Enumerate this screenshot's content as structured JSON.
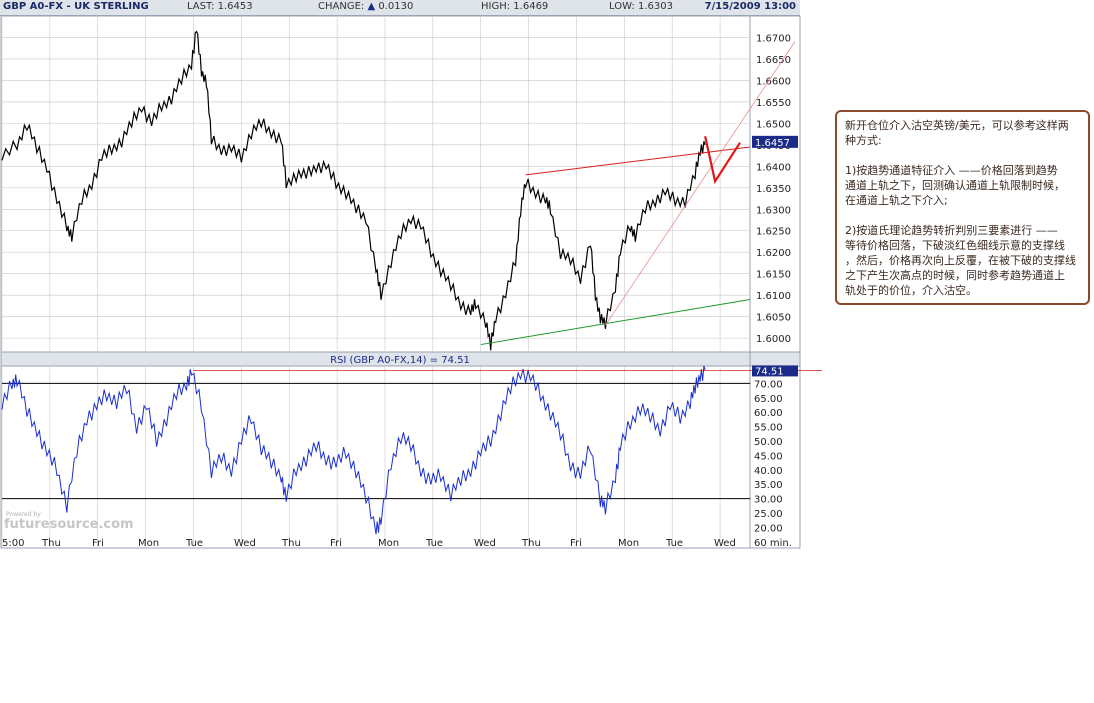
{
  "header": {
    "symbol": "GBP A0-FX - UK STERLING",
    "last_label": "LAST:",
    "last_value": "1.6453",
    "change_label": "CHANGE:",
    "change_arrow": "▲",
    "change_value": "0.0130",
    "high_label": "HIGH:",
    "high_value": "1.6469",
    "low_label": "LOW:",
    "low_value": "1.6303",
    "datetime": "7/15/2009 13:00"
  },
  "indicator": {
    "label": "RSI (GBP A0-FX,14) = 74.51",
    "value_badge": "74.51"
  },
  "price_badge": "1.6457",
  "watermark": "futuresource.com",
  "watermark_small": "Powered by",
  "note": {
    "lines": [
      "新开仓位介入沽空英镑/美元，可以参考这样两",
      "种方式:",
      "",
      "1)按趋势通道特征介入 ——价格回落到趋势",
      "通道上轨之下，回测确认通道上轨限制时候，",
      "在通道上轨之下介入;",
      "",
      "2)按道氏理论趋势转折判别三要素进行 ——",
      "等待价格回落，下破淡红色细线示意的支撑线",
      "，然后，价格再次向上反覆，在被下破的支撑线",
      "之下产生次高点的时候，同时参考趋势通道上",
      "轨处于的价位，介入沽空。"
    ]
  },
  "colors": {
    "price_line": "#000000",
    "rsi_line": "#1a2fd0",
    "channel_upper": "#d42020",
    "channel_lower": "#1e9a2a",
    "support_line": "#f08a8a",
    "annotation_arrow": "#e01818",
    "badge_bg": "#1b2b8a",
    "grid": "#c8c8c8",
    "note_border": "#8b4a2b"
  },
  "chart_data": [
    {
      "type": "line",
      "title": "GBP A0-FX - UK STERLING",
      "interval": "60 min.",
      "ylim": [
        1.597,
        1.675
      ],
      "y_ticks": [
        "1.6700",
        "1.6650",
        "1.6600",
        "1.6550",
        "1.6500",
        "1.6450",
        "1.6400",
        "1.6350",
        "1.6300",
        "1.6250",
        "1.6200",
        "1.6150",
        "1.6100",
        "1.6050",
        "1.6000"
      ],
      "x_tick_labels": [
        "5:00",
        "Thu",
        "Fri",
        "Mon",
        "Tue",
        "Wed",
        "Thu",
        "Fri",
        "Mon",
        "Tue",
        "Wed",
        "Thu",
        "Fri",
        "Mon",
        "Tue",
        "Wed",
        "60 min."
      ],
      "x_range": [
        0,
        150
      ],
      "series": [
        {
          "values": [
            [
              0,
              1.642
            ],
            [
              3,
              1.645
            ],
            [
              5,
              1.65
            ],
            [
              7,
              1.644
            ],
            [
              9,
              1.64
            ],
            [
              11,
              1.632
            ],
            [
              13,
              1.626
            ],
            [
              14,
              1.624
            ],
            [
              16,
              1.632
            ],
            [
              18,
              1.636
            ],
            [
              20,
              1.642
            ],
            [
              22,
              1.644
            ],
            [
              24,
              1.646
            ],
            [
              26,
              1.65
            ],
            [
              28,
              1.654
            ],
            [
              30,
              1.65
            ],
            [
              32,
              1.654
            ],
            [
              34,
              1.656
            ],
            [
              36,
              1.66
            ],
            [
              38,
              1.664
            ],
            [
              39,
              1.672
            ],
            [
              40,
              1.662
            ],
            [
              41,
              1.66
            ],
            [
              42,
              1.646
            ],
            [
              44,
              1.644
            ],
            [
              46,
              1.644
            ],
            [
              48,
              1.642
            ],
            [
              50,
              1.648
            ],
            [
              52,
              1.65
            ],
            [
              54,
              1.648
            ],
            [
              56,
              1.646
            ],
            [
              57,
              1.636
            ],
            [
              59,
              1.638
            ],
            [
              61,
              1.638
            ],
            [
              63,
              1.64
            ],
            [
              65,
              1.64
            ],
            [
              67,
              1.636
            ],
            [
              69,
              1.634
            ],
            [
              71,
              1.63
            ],
            [
              73,
              1.628
            ],
            [
              75,
              1.616
            ],
            [
              76,
              1.61
            ],
            [
              78,
              1.618
            ],
            [
              80,
              1.624
            ],
            [
              82,
              1.628
            ],
            [
              84,
              1.626
            ],
            [
              86,
              1.62
            ],
            [
              88,
              1.616
            ],
            [
              90,
              1.612
            ],
            [
              92,
              1.608
            ],
            [
              94,
              1.606
            ],
            [
              95,
              1.608
            ],
            [
              97,
              1.604
            ],
            [
              98,
              1.598
            ],
            [
              99,
              1.605
            ],
            [
              101,
              1.61
            ],
            [
              103,
              1.618
            ],
            [
              104,
              1.63
            ],
            [
              105,
              1.636
            ],
            [
              107,
              1.634
            ],
            [
              109,
              1.632
            ],
            [
              110,
              1.63
            ],
            [
              112,
              1.62
            ],
            [
              114,
              1.618
            ],
            [
              116,
              1.614
            ],
            [
              118,
              1.622
            ],
            [
              119,
              1.61
            ],
            [
              120,
              1.605
            ],
            [
              121,
              1.603
            ],
            [
              123,
              1.612
            ],
            [
              124,
              1.62
            ],
            [
              126,
              1.626
            ],
            [
              127,
              1.624
            ],
            [
              129,
              1.63
            ],
            [
              131,
              1.632
            ],
            [
              133,
              1.634
            ],
            [
              135,
              1.632
            ],
            [
              137,
              1.632
            ],
            [
              139,
              1.638
            ],
            [
              140,
              1.644
            ],
            [
              141,
              1.645
            ]
          ]
        }
      ],
      "annotations": {
        "upper_channel": [
          [
            105,
            1.638
          ],
          [
            150,
            1.6445
          ]
        ],
        "lower_channel": [
          [
            96,
            1.5985
          ],
          [
            150,
            1.609
          ]
        ],
        "support_line": [
          [
            121,
            1.603
          ],
          [
            159,
            1.669
          ]
        ],
        "red_arrow": [
          [
            141,
            1.647
          ],
          [
            143,
            1.6365
          ],
          [
            148,
            1.6455
          ]
        ]
      }
    },
    {
      "type": "line",
      "title": "RSI (GBP A0-FX,14) = 74.51",
      "ylim": [
        17,
        75
      ],
      "y_ticks": [
        "70.00",
        "65.00",
        "60.00",
        "55.00",
        "50.00",
        "45.00",
        "40.00",
        "35.00",
        "30.00",
        "25.00",
        "20.00"
      ],
      "overbought": 70,
      "oversold": 30,
      "series": [
        {
          "name": "RSI",
          "values": [
            [
              0,
              62
            ],
            [
              2,
              70
            ],
            [
              3,
              72
            ],
            [
              5,
              60
            ],
            [
              7,
              54
            ],
            [
              9,
              46
            ],
            [
              11,
              40
            ],
            [
              13,
              28
            ],
            [
              15,
              46
            ],
            [
              17,
              58
            ],
            [
              19,
              62
            ],
            [
              21,
              66
            ],
            [
              23,
              64
            ],
            [
              25,
              68
            ],
            [
              27,
              55
            ],
            [
              29,
              62
            ],
            [
              31,
              50
            ],
            [
              33,
              58
            ],
            [
              35,
              66
            ],
            [
              37,
              70
            ],
            [
              38,
              74
            ],
            [
              40,
              62
            ],
            [
              42,
              40
            ],
            [
              44,
              44
            ],
            [
              46,
              40
            ],
            [
              48,
              50
            ],
            [
              50,
              58
            ],
            [
              52,
              48
            ],
            [
              54,
              42
            ],
            [
              56,
              38
            ],
            [
              57,
              30
            ],
            [
              59,
              40
            ],
            [
              61,
              44
            ],
            [
              63,
              48
            ],
            [
              65,
              44
            ],
            [
              67,
              42
            ],
            [
              69,
              46
            ],
            [
              71,
              40
            ],
            [
              73,
              30
            ],
            [
              75,
              20
            ],
            [
              76,
              22
            ],
            [
              78,
              42
            ],
            [
              80,
              52
            ],
            [
              82,
              48
            ],
            [
              84,
              40
            ],
            [
              86,
              36
            ],
            [
              88,
              38
            ],
            [
              90,
              32
            ],
            [
              92,
              36
            ],
            [
              94,
              40
            ],
            [
              96,
              46
            ],
            [
              98,
              50
            ],
            [
              100,
              60
            ],
            [
              102,
              68
            ],
            [
              104,
              74
            ],
            [
              106,
              72
            ],
            [
              108,
              66
            ],
            [
              110,
              60
            ],
            [
              112,
              52
            ],
            [
              114,
              42
            ],
            [
              116,
              38
            ],
            [
              118,
              48
            ],
            [
              120,
              30
            ],
            [
              121,
              26
            ],
            [
              123,
              38
            ],
            [
              124,
              48
            ],
            [
              126,
              56
            ],
            [
              128,
              62
            ],
            [
              130,
              58
            ],
            [
              132,
              54
            ],
            [
              134,
              62
            ],
            [
              136,
              58
            ],
            [
              138,
              64
            ],
            [
              139,
              68
            ],
            [
              140,
              73
            ],
            [
              141,
              74.51
            ]
          ]
        }
      ]
    }
  ]
}
